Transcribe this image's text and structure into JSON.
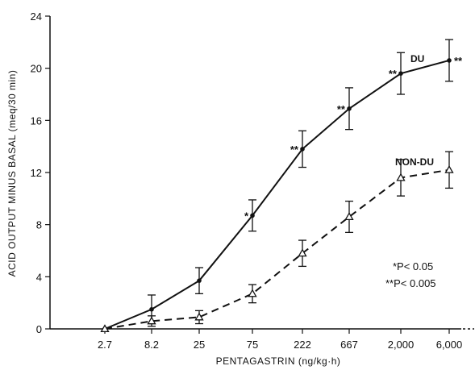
{
  "chart_data": {
    "type": "line",
    "xlabel": "PENTAGASTRIN (ng/kg·h)",
    "ylabel": "ACID OUTPUT MINUS BASAL (meq/30 min)",
    "categories": [
      "2.7",
      "8.2",
      "25",
      "75",
      "222",
      "667",
      "2,000",
      "6,000"
    ],
    "ylim": [
      0,
      24
    ],
    "yticks": [
      "0",
      "4",
      "8",
      "12",
      "16",
      "20",
      "24"
    ],
    "grid": false,
    "series": [
      {
        "name": "DU",
        "style": "solid",
        "marker": "filled-circle",
        "values": [
          0,
          1.5,
          3.7,
          8.7,
          13.8,
          16.9,
          19.6,
          20.6
        ],
        "error": [
          0,
          1.1,
          1.0,
          1.2,
          1.4,
          1.6,
          1.6,
          1.6
        ],
        "significance": [
          "",
          "",
          "",
          "*",
          "**",
          "**",
          "**",
          "**"
        ]
      },
      {
        "name": "NON-DU",
        "style": "dashed",
        "marker": "open-triangle",
        "values": [
          0,
          0.6,
          0.9,
          2.7,
          5.8,
          8.6,
          11.6,
          12.2
        ],
        "error": [
          0,
          0.4,
          0.5,
          0.7,
          1.0,
          1.2,
          1.4,
          1.4
        ],
        "significance": [
          "",
          "",
          "",
          "",
          "",
          "",
          "",
          ""
        ]
      }
    ],
    "legend_note": [
      "*P< 0.05",
      "**P< 0.005"
    ]
  }
}
